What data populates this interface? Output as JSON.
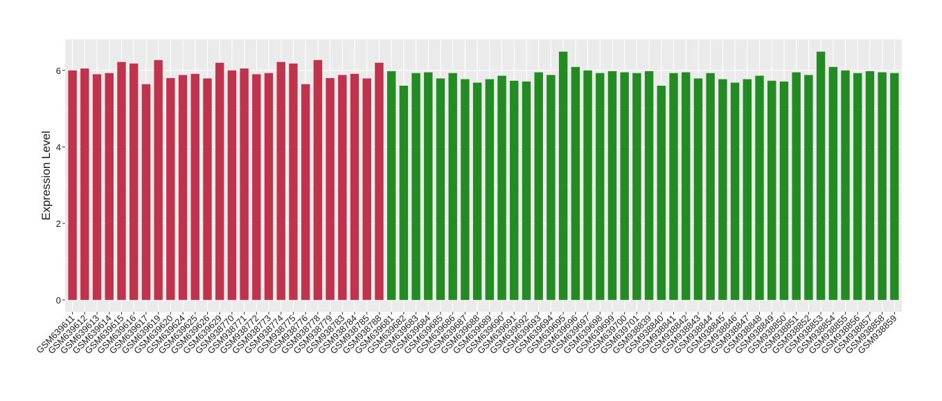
{
  "chart_data": {
    "type": "bar",
    "y_label": "Expression Level",
    "categories": [
      "GSM639611",
      "GSM639612",
      "GSM639613",
      "GSM639614",
      "GSM639615",
      "GSM639616",
      "GSM639617",
      "GSM639619",
      "GSM639620",
      "GSM639624",
      "GSM639625",
      "GSM639626",
      "GSM639629",
      "GSM938770",
      "GSM938771",
      "GSM938772",
      "GSM938773",
      "GSM938774",
      "GSM938775",
      "GSM938776",
      "GSM938778",
      "GSM938779",
      "GSM938783",
      "GSM938784",
      "GSM938785",
      "GSM938788",
      "GSM639681",
      "GSM639682",
      "GSM639683",
      "GSM639684",
      "GSM639685",
      "GSM639686",
      "GSM639687",
      "GSM639688",
      "GSM639689",
      "GSM639690",
      "GSM639691",
      "GSM639692",
      "GSM639693",
      "GSM639694",
      "GSM639695",
      "GSM639696",
      "GSM639697",
      "GSM639698",
      "GSM639699",
      "GSM639700",
      "GSM639701",
      "GSM938839",
      "GSM938840",
      "GSM938841",
      "GSM938842",
      "GSM938843",
      "GSM938844",
      "GSM938845",
      "GSM938846",
      "GSM938847",
      "GSM938848",
      "GSM938849",
      "GSM938850",
      "GSM938851",
      "GSM938852",
      "GSM938853",
      "GSM938854",
      "GSM938855",
      "GSM938856",
      "GSM938857",
      "GSM938858",
      "GSM938859"
    ],
    "values": [
      6.0,
      6.05,
      5.9,
      5.93,
      6.22,
      6.18,
      5.64,
      6.27,
      5.8,
      5.88,
      5.91,
      5.79,
      6.2,
      6.0,
      6.05,
      5.9,
      5.93,
      6.22,
      6.18,
      5.64,
      6.27,
      5.8,
      5.88,
      5.91,
      5.79,
      6.2,
      5.98,
      5.6,
      5.93,
      5.95,
      5.79,
      5.93,
      5.77,
      5.68,
      5.77,
      5.86,
      5.73,
      5.71,
      5.95,
      5.88,
      6.49,
      6.09,
      6.0,
      5.93,
      5.98,
      5.95,
      5.93,
      5.98,
      5.6,
      5.93,
      5.95,
      5.79,
      5.93,
      5.77,
      5.68,
      5.77,
      5.86,
      5.73,
      5.71,
      5.95,
      5.88,
      6.49,
      6.09,
      6.0,
      5.93,
      5.98,
      5.95,
      5.93
    ],
    "colors": [
      "#c0334d",
      "#c0334d",
      "#c0334d",
      "#c0334d",
      "#c0334d",
      "#c0334d",
      "#c0334d",
      "#c0334d",
      "#c0334d",
      "#c0334d",
      "#c0334d",
      "#c0334d",
      "#c0334d",
      "#c0334d",
      "#c0334d",
      "#c0334d",
      "#c0334d",
      "#c0334d",
      "#c0334d",
      "#c0334d",
      "#c0334d",
      "#c0334d",
      "#c0334d",
      "#c0334d",
      "#c0334d",
      "#c0334d",
      "#228b22",
      "#228b22",
      "#228b22",
      "#228b22",
      "#228b22",
      "#228b22",
      "#228b22",
      "#228b22",
      "#228b22",
      "#228b22",
      "#228b22",
      "#228b22",
      "#228b22",
      "#228b22",
      "#228b22",
      "#228b22",
      "#228b22",
      "#228b22",
      "#228b22",
      "#228b22",
      "#228b22",
      "#228b22",
      "#228b22",
      "#228b22",
      "#228b22",
      "#228b22",
      "#228b22",
      "#228b22",
      "#228b22",
      "#228b22",
      "#228b22",
      "#228b22",
      "#228b22",
      "#228b22",
      "#228b22",
      "#228b22",
      "#228b22",
      "#228b22",
      "#228b22",
      "#228b22",
      "#228b22",
      "#228b22"
    ],
    "ylim": [
      -0.31,
      6.81
    ],
    "yticks": [
      0,
      2,
      4,
      6
    ],
    "grid": true,
    "panel_color": "#ebebeb"
  }
}
